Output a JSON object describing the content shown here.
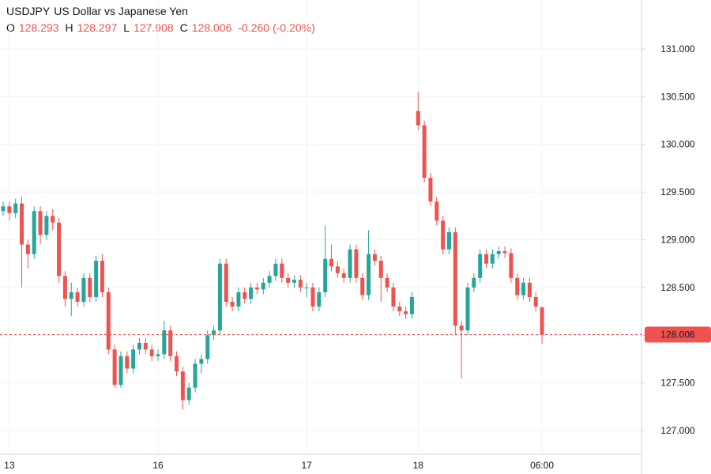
{
  "chart_data": {
    "type": "candlestick",
    "header": {
      "symbol": "USDJPY",
      "description": "US Dollar vs Japanese Yen",
      "legend": [
        {
          "label": "O",
          "value": "128.293"
        },
        {
          "label": "H",
          "value": "128.297"
        },
        {
          "label": "L",
          "value": "127.908"
        },
        {
          "label": "C",
          "value": "128.006"
        }
      ],
      "change": "-0.260",
      "change_pct": "(-0.20%)"
    },
    "categories": [
      null,
      "13",
      null,
      null,
      null,
      null,
      null,
      null,
      null,
      null,
      null,
      null,
      null,
      null,
      null,
      null,
      null,
      null,
      null,
      null,
      null,
      null,
      null,
      null,
      null,
      "16",
      null,
      null,
      null,
      null,
      null,
      null,
      null,
      null,
      null,
      null,
      null,
      null,
      null,
      null,
      null,
      null,
      null,
      null,
      null,
      null,
      null,
      null,
      null,
      "17",
      null,
      null,
      null,
      null,
      null,
      null,
      null,
      null,
      null,
      null,
      null,
      null,
      null,
      null,
      null,
      null,
      null,
      "18",
      null,
      null,
      null,
      null,
      null,
      null,
      null,
      null,
      null,
      null,
      null,
      null,
      null,
      null,
      null,
      null,
      null,
      null,
      null,
      "06:00"
    ],
    "open": [
      129.3,
      129.35,
      129.28,
      129.38,
      128.95,
      128.85,
      129.3,
      129.05,
      129.25,
      129.18,
      128.62,
      128.38,
      128.45,
      128.35,
      128.6,
      128.4,
      128.78,
      128.45,
      127.85,
      127.48,
      127.78,
      127.65,
      127.85,
      127.92,
      127.85,
      127.78,
      127.8,
      128.05,
      127.78,
      127.62,
      127.32,
      127.45,
      127.7,
      127.75,
      128.0,
      128.05,
      128.75,
      128.35,
      128.3,
      128.45,
      128.38,
      128.5,
      128.48,
      128.55,
      128.62,
      128.75,
      128.6,
      128.55,
      128.58,
      128.5,
      128.5,
      128.3,
      128.45,
      128.8,
      128.72,
      128.65,
      128.6,
      128.9,
      128.6,
      128.42,
      128.85,
      128.78,
      128.6,
      128.5,
      128.3,
      128.25,
      128.22,
      130.35,
      130.2,
      129.65,
      129.4,
      129.2,
      128.9,
      129.08,
      128.1,
      128.05,
      128.5,
      128.6,
      128.85,
      128.75,
      128.85,
      128.88,
      128.86,
      128.6,
      128.42,
      128.55,
      128.4,
      128.293
    ],
    "high": [
      129.4,
      129.4,
      129.43,
      129.45,
      129.0,
      129.35,
      129.35,
      129.3,
      129.32,
      129.23,
      128.67,
      128.55,
      128.5,
      128.65,
      128.65,
      128.83,
      128.85,
      128.5,
      127.9,
      127.83,
      127.83,
      127.9,
      127.97,
      127.97,
      127.9,
      127.85,
      128.15,
      128.1,
      127.83,
      127.67,
      127.5,
      127.75,
      127.8,
      128.05,
      128.1,
      128.8,
      128.8,
      128.4,
      128.5,
      128.5,
      128.55,
      128.55,
      128.6,
      128.67,
      128.8,
      128.8,
      128.65,
      128.63,
      128.63,
      128.55,
      128.55,
      128.5,
      129.15,
      128.95,
      128.77,
      128.7,
      128.95,
      128.95,
      128.65,
      129.1,
      128.9,
      128.83,
      128.65,
      128.55,
      128.35,
      128.3,
      128.45,
      130.55,
      130.25,
      129.7,
      129.45,
      129.25,
      129.13,
      129.13,
      128.15,
      128.55,
      128.65,
      128.9,
      128.9,
      128.9,
      128.93,
      128.93,
      128.91,
      128.65,
      128.6,
      128.6,
      128.45,
      128.297
    ],
    "low": [
      129.25,
      129.2,
      129.23,
      128.5,
      128.7,
      128.8,
      128.95,
      129.0,
      129.1,
      128.55,
      128.3,
      128.2,
      128.3,
      128.3,
      128.35,
      128.35,
      128.4,
      127.8,
      127.45,
      127.45,
      127.6,
      127.6,
      127.8,
      127.8,
      127.73,
      127.73,
      127.75,
      127.73,
      127.57,
      127.22,
      127.27,
      127.4,
      127.6,
      127.7,
      127.95,
      128.0,
      128.3,
      128.25,
      128.25,
      128.33,
      128.33,
      128.43,
      128.43,
      128.5,
      128.57,
      128.55,
      128.5,
      128.5,
      128.45,
      128.4,
      128.25,
      128.25,
      128.4,
      128.67,
      128.6,
      128.55,
      128.55,
      128.55,
      128.37,
      128.37,
      128.73,
      128.35,
      128.45,
      128.25,
      128.2,
      128.17,
      128.17,
      130.15,
      129.6,
      129.35,
      129.15,
      128.85,
      128.85,
      128.0,
      127.55,
      128.0,
      128.45,
      128.55,
      128.7,
      128.7,
      128.8,
      128.81,
      128.55,
      128.37,
      128.37,
      128.35,
      128.25,
      127.908
    ],
    "close": [
      129.35,
      129.28,
      129.38,
      128.95,
      128.85,
      129.3,
      129.05,
      129.25,
      129.18,
      128.62,
      128.38,
      128.45,
      128.35,
      128.6,
      128.4,
      128.78,
      128.45,
      127.85,
      127.48,
      127.78,
      127.65,
      127.85,
      127.92,
      127.85,
      127.78,
      127.8,
      128.05,
      127.78,
      127.62,
      127.32,
      127.45,
      127.7,
      127.75,
      128.0,
      128.05,
      128.75,
      128.35,
      128.3,
      128.45,
      128.38,
      128.5,
      128.48,
      128.55,
      128.62,
      128.75,
      128.6,
      128.55,
      128.58,
      128.5,
      128.5,
      128.3,
      128.45,
      128.8,
      128.72,
      128.65,
      128.6,
      128.9,
      128.6,
      128.42,
      128.85,
      128.78,
      128.6,
      128.5,
      128.3,
      128.25,
      128.22,
      128.4,
      130.2,
      129.65,
      129.4,
      129.2,
      128.9,
      129.08,
      128.1,
      128.05,
      128.5,
      128.6,
      128.85,
      128.75,
      128.85,
      128.88,
      128.86,
      128.6,
      128.42,
      128.55,
      128.4,
      128.3,
      128.006
    ],
    "up_color": "#26a69a",
    "down_color": "#ef5350",
    "last_price": 128.006,
    "ylim": [
      126.752,
      131.513
    ],
    "yticks": [
      {
        "value": 127,
        "label": "127.000"
      },
      {
        "value": 127.5,
        "label": "127.500"
      },
      {
        "value": 128,
        "label": "128.000"
      },
      {
        "value": 128.5,
        "label": "128.500"
      },
      {
        "value": 129,
        "label": "129.000"
      },
      {
        "value": 129.5,
        "label": "129.500"
      },
      {
        "value": 130,
        "label": "130.000"
      },
      {
        "value": 130.5,
        "label": "130.500"
      },
      {
        "value": 131,
        "label": "131.000"
      }
    ],
    "grid": true
  }
}
